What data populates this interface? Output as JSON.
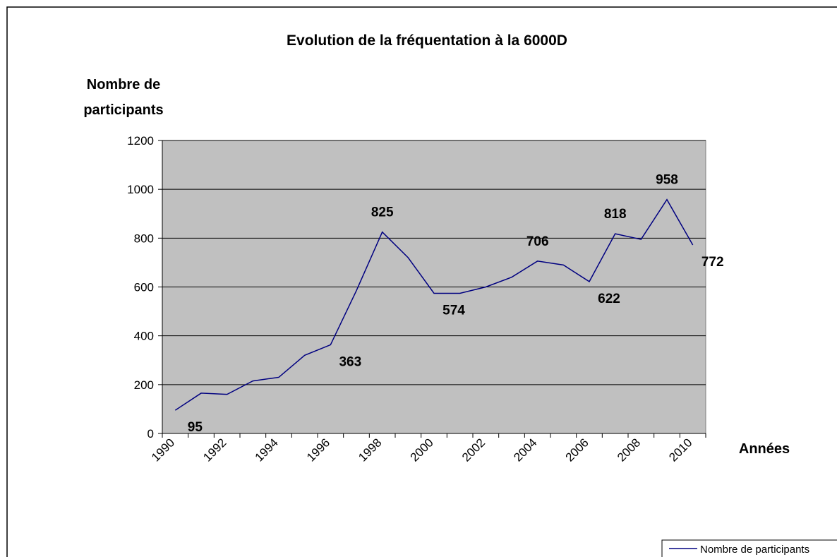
{
  "chart_data": {
    "type": "line",
    "title": "Evolution de la fréquentation à la 6000D",
    "y_label": "Nombre de participants",
    "x_label": "Années",
    "categories": [
      "1990",
      null,
      "1992",
      null,
      "1994",
      null,
      "1996",
      null,
      "1998",
      null,
      "2000",
      null,
      "2002",
      null,
      "2004",
      null,
      "2006",
      null,
      "2008",
      null,
      "2010"
    ],
    "series": [
      {
        "name": "Nombre de participants",
        "color": "#000080",
        "values": [
          95,
          165,
          160,
          215,
          230,
          320,
          363,
          585,
          825,
          720,
          574,
          574,
          600,
          640,
          706,
          690,
          622,
          818,
          795,
          958,
          772
        ]
      }
    ],
    "label_indices": [
      0,
      6,
      8,
      10,
      14,
      16,
      17,
      19,
      20
    ],
    "ylim": [
      0,
      1200
    ],
    "yticks": [
      0,
      200,
      400,
      600,
      800,
      1000,
      1200
    ],
    "grid": true,
    "plot_background": "#c0c0c0",
    "legend": "bottom-right"
  }
}
